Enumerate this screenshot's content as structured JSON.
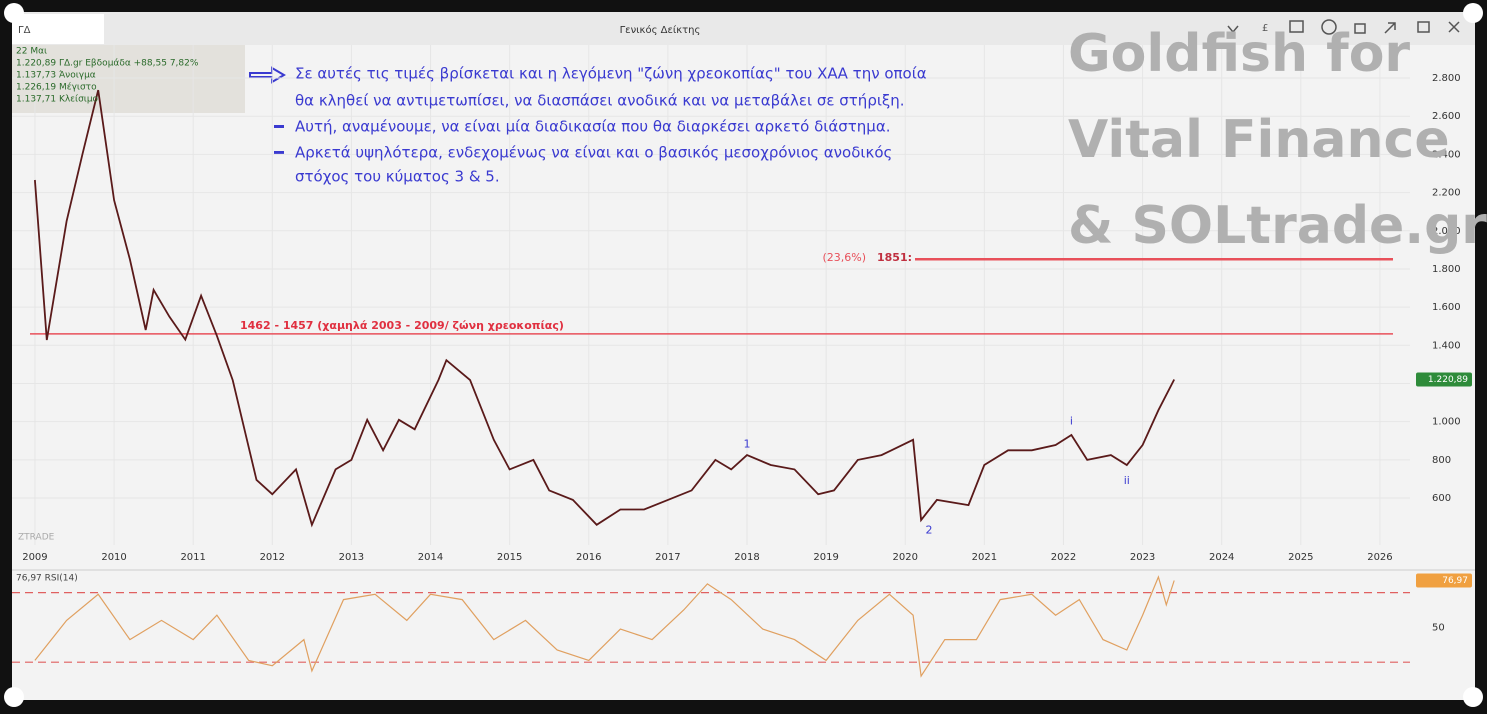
{
  "window": {
    "symbol": "ΓΔ",
    "title": "Γενικός Δείκτης"
  },
  "info": [
    "22 Μαι",
    "1.220,89 ΓΔ.gr Εβδομάδα +88,55 7,82%",
    "1.137,73 Άνοιγμα",
    "1.226,19 Μέγιστο",
    "1.137,71 Κλείσιμο"
  ],
  "note_lines": [
    "Σε αυτές τις τιμές βρίσκεται και η λεγόμενη  \"ζώνη χρεοκοπίας\" του ΧΑΑ την οποία",
    "θα κληθεί να αντιμετωπίσει, να διασπάσει ανοδικά και να μεταβάλει σε στήριξη.",
    "Αυτή, αναμένουμε, να είναι μία διαδικασία που θα διαρκέσει αρκετό διάστημα.",
    "Αρκετά υψηλότερα, ενδεχομένως να είναι και ο βασικός μεσοχρόνιος ανοδικός",
    "στόχος του κύματος 3 & 5."
  ],
  "watermark": [
    "Goldfish for",
    "Vital Finance",
    "& SOLtrade.gr"
  ],
  "logo": "ZTRADE",
  "chart_data": [
    {
      "type": "line",
      "xlim": [
        2008.71,
        2026.38
      ],
      "ylim": [
        354,
        2973
      ],
      "xticks": [
        2009,
        2010,
        2011,
        2012,
        2013,
        2014,
        2015,
        2016,
        2017,
        2018,
        2019,
        2020,
        2021,
        2022,
        2023,
        2024,
        2025,
        2026
      ],
      "yticks": [
        600,
        800,
        {
          "value": 1000,
          "label": "1.000"
        },
        {
          "value": 1200,
          "label": "1.200"
        },
        {
          "value": 1400,
          "label": "1.400"
        },
        {
          "value": 1600,
          "label": "1.600"
        },
        {
          "value": 1800,
          "label": "1.800"
        },
        {
          "value": 2000,
          "label": "2.000"
        },
        {
          "value": 2200,
          "label": "2.200"
        },
        {
          "value": 2400,
          "label": "2.400"
        },
        {
          "value": 2600,
          "label": "2.600"
        },
        {
          "value": 2800,
          "label": "2.800"
        }
      ],
      "grid": true,
      "series": [
        {
          "color": "#5a1a1a",
          "x": [
            2009.0,
            2009.15,
            2009.4,
            2009.6,
            2009.8,
            2010.0,
            2010.2,
            2010.4,
            2010.5,
            2010.7,
            2010.9,
            2011.1,
            2011.3,
            2011.5,
            2011.8,
            2012.0,
            2012.3,
            2012.5,
            2012.8,
            2013.0,
            2013.2,
            2013.4,
            2013.6,
            2013.8,
            2014.1,
            2014.2,
            2014.5,
            2014.8,
            2015.0,
            2015.3,
            2015.5,
            2015.8,
            2016.1,
            2016.4,
            2016.7,
            2017.0,
            2017.3,
            2017.6,
            2017.8,
            2018.0,
            2018.3,
            2018.6,
            2018.9,
            2019.1,
            2019.4,
            2019.7,
            2020.1,
            2020.2,
            2020.4,
            2020.8,
            2021.0,
            2021.3,
            2021.6,
            2021.9,
            2022.1,
            2022.3,
            2022.6,
            2022.8,
            2023.0,
            2023.2,
            2023.4
          ],
          "values": [
            2266,
            1428,
            2050,
            2400,
            2737,
            2160,
            1850,
            1480,
            1690,
            1550,
            1430,
            1660,
            1450,
            1218,
            695,
            620,
            750,
            460,
            750,
            800,
            1010,
            850,
            1010,
            960,
            1218,
            1322,
            1218,
            905,
            750,
            800,
            640,
            590,
            460,
            540,
            540,
            590,
            640,
            800,
            750,
            825,
            773,
            750,
            620,
            640,
            800,
            825,
            905,
            485,
            590,
            563,
            773,
            850,
            850,
            878,
            930,
            800,
            825,
            773,
            878,
            1060,
            1220.89
          ]
        }
      ],
      "last_label": {
        "value": 1220.89,
        "label": "1.220,89"
      },
      "levels": [
        {
          "value": 1460,
          "label": "1462 - 1457 (χαμηλά 2003 - 2009/ ζώνη χρεοκοπίας)",
          "color": "#e8505a"
        },
        {
          "value": 1851,
          "label_prefix": "(23,6%)",
          "label": "1851:",
          "color": "#e8505a"
        }
      ],
      "waves": [
        {
          "text": "1",
          "x": 2018.0,
          "y": 880
        },
        {
          "text": "2",
          "x": 2020.3,
          "y": 430
        },
        {
          "text": "i",
          "x": 2022.1,
          "y": 1000
        },
        {
          "text": "ii",
          "x": 2022.8,
          "y": 690
        }
      ]
    },
    {
      "type": "line",
      "title": "76,97 RSI(14)",
      "xlim": [
        2008.71,
        2026.38
      ],
      "ylim": [
        14,
        83
      ],
      "yticks": [
        50
      ],
      "levels": [
        30,
        70
      ],
      "series": [
        {
          "color": "#e0a060",
          "x": [
            2009.0,
            2009.4,
            2009.8,
            2010.2,
            2010.6,
            2011.0,
            2011.3,
            2011.7,
            2012.0,
            2012.4,
            2012.5,
            2012.9,
            2013.3,
            2013.7,
            2014.0,
            2014.4,
            2014.8,
            2015.2,
            2015.6,
            2016.0,
            2016.4,
            2016.8,
            2017.2,
            2017.5,
            2017.8,
            2018.2,
            2018.6,
            2019.0,
            2019.4,
            2019.8,
            2020.1,
            2020.2,
            2020.5,
            2020.9,
            2021.2,
            2021.6,
            2021.9,
            2022.2,
            2022.5,
            2022.8,
            2023.0,
            2023.2,
            2023.3,
            2023.4
          ],
          "values": [
            31,
            54,
            69,
            43,
            54,
            43,
            57,
            31,
            28,
            43,
            25,
            66,
            69,
            54,
            69,
            66,
            43,
            54,
            37,
            31,
            49,
            43,
            60,
            75,
            66,
            49,
            43,
            31,
            54,
            69,
            57,
            22,
            43,
            43,
            66,
            69,
            57,
            66,
            43,
            37,
            57,
            79,
            63,
            76.97
          ]
        }
      ],
      "last_label": {
        "value": 76.97,
        "label": "76,97"
      }
    }
  ]
}
